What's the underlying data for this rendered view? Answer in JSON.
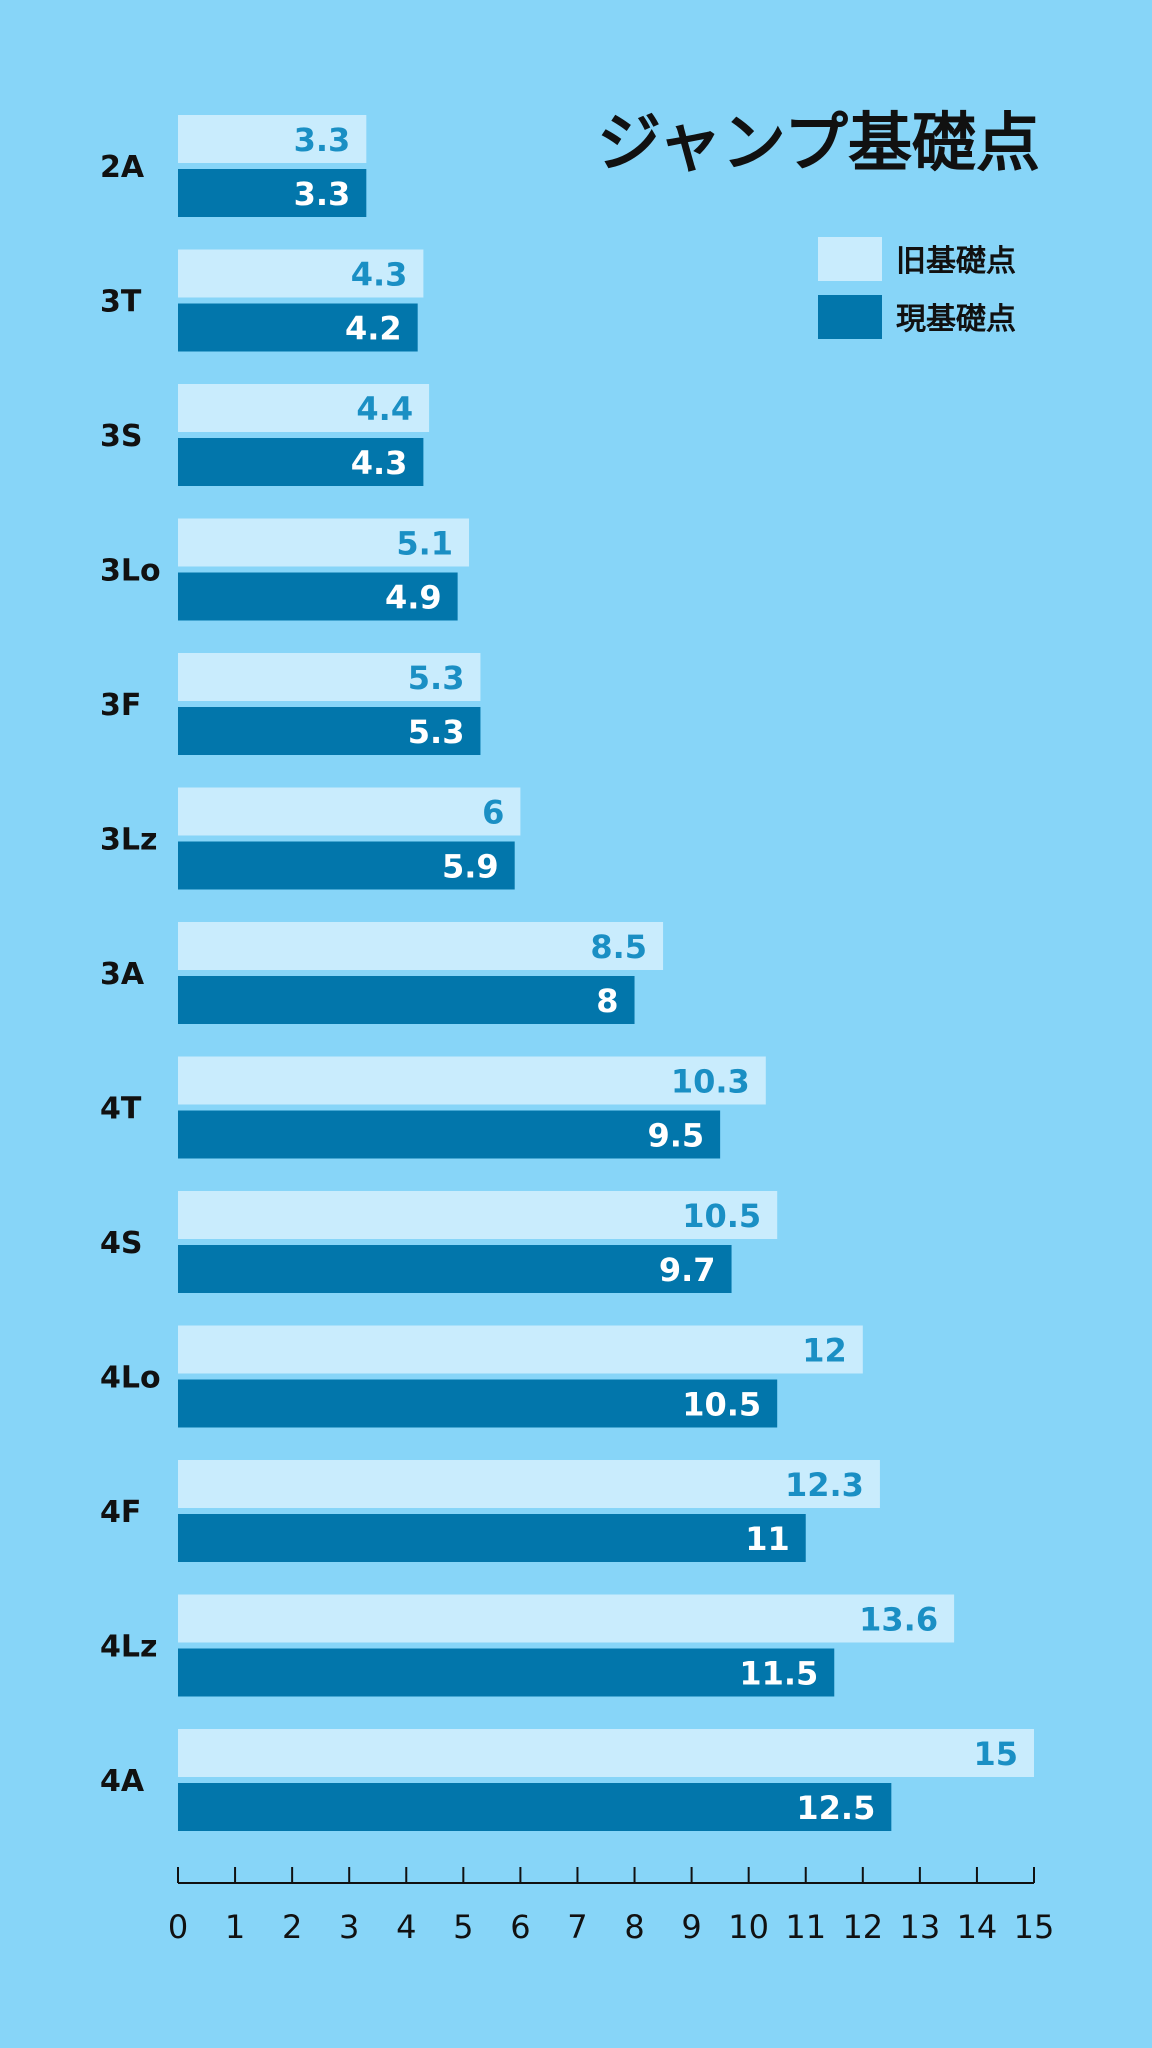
{
  "chart_data": {
    "type": "bar",
    "orientation": "horizontal",
    "title": "ジャンプ基礎点",
    "categories": [
      "2A",
      "3T",
      "3S",
      "3Lo",
      "3F",
      "3Lz",
      "3A",
      "4T",
      "4S",
      "4Lo",
      "4F",
      "4Lz",
      "4A"
    ],
    "series": [
      {
        "name": "旧基礎点",
        "color": "#c9ecfd",
        "label_color": "#1a8fc4",
        "values": [
          3.3,
          4.3,
          4.4,
          5.1,
          5.3,
          6,
          8.5,
          10.3,
          10.5,
          12,
          12.3,
          13.6,
          15
        ]
      },
      {
        "name": "現基礎点",
        "color": "#0276ab",
        "label_color": "#ffffff",
        "values": [
          3.3,
          4.2,
          4.3,
          4.9,
          5.3,
          5.9,
          8,
          9.5,
          9.7,
          10.5,
          11,
          11.5,
          12.5
        ]
      }
    ],
    "xlim": [
      0,
      15
    ],
    "xticks": [
      0,
      1,
      2,
      3,
      4,
      5,
      6,
      7,
      8,
      9,
      10,
      11,
      12,
      13,
      14,
      15
    ],
    "legend_position": "top-right",
    "grid": false
  }
}
